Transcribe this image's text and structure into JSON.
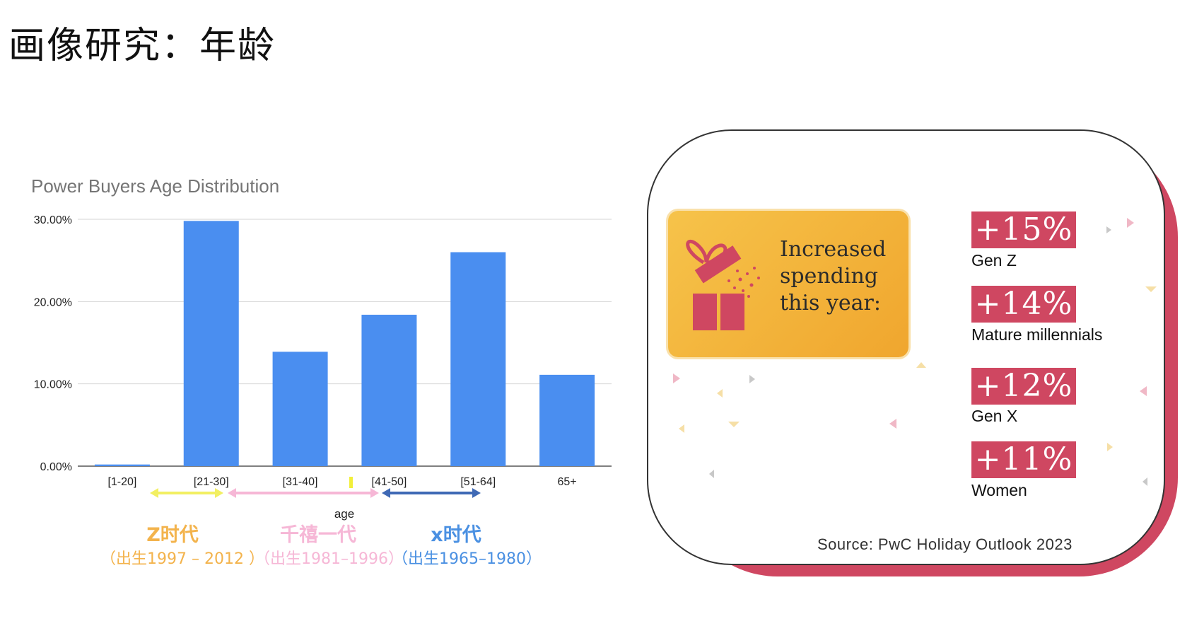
{
  "page": {
    "title": "画像研究：年龄"
  },
  "chart_data": {
    "type": "bar",
    "title": "Power Buyers Age Distribution",
    "xlabel": "age",
    "ylabel": "",
    "categories": [
      "[1-20]",
      "[21-30]",
      "[31-40]",
      "[41-50]",
      "[51-64]",
      "65+"
    ],
    "values": [
      0.2,
      29.8,
      13.9,
      18.4,
      26.0,
      11.1
    ],
    "ylim": [
      0,
      30
    ],
    "yticks": [
      "0.00%",
      "10.00%",
      "20.00%",
      "30.00%"
    ],
    "ytick_values": [
      0,
      10,
      20,
      30
    ],
    "bar_color": "#4a8ef0",
    "grid": true,
    "generations": [
      {
        "name": "Z时代",
        "years": "（出生1997 – 2012 ）",
        "color": "#f3b34c",
        "arrow_color": "#f2ef62",
        "from": "[21-30]",
        "to": "[21-30]"
      },
      {
        "name": "千禧一代",
        "years": "（出生1981–1996）",
        "color": "#f6b7d6",
        "arrow_color": "#f6b7d6",
        "from": "[31-40]",
        "to": "[41-50]"
      },
      {
        "name": "x时代",
        "years": "（出生1965–1980）",
        "color": "#4a90e2",
        "arrow_color": "#3f69b5",
        "from": "[41-50]",
        "to": "[51-64]"
      }
    ]
  },
  "card": {
    "gift_text": "Increased spending this year:",
    "stats": [
      {
        "value": "+15%",
        "label": "Gen Z"
      },
      {
        "value": "+14%",
        "label": "Mature millennials"
      },
      {
        "value": "+12%",
        "label": "Gen X"
      },
      {
        "value": "+11%",
        "label": "Women"
      }
    ],
    "source": "Source: PwC Holiday Outlook 2023",
    "accent_color": "#cf4761",
    "gift_color": "#f4b43c"
  }
}
